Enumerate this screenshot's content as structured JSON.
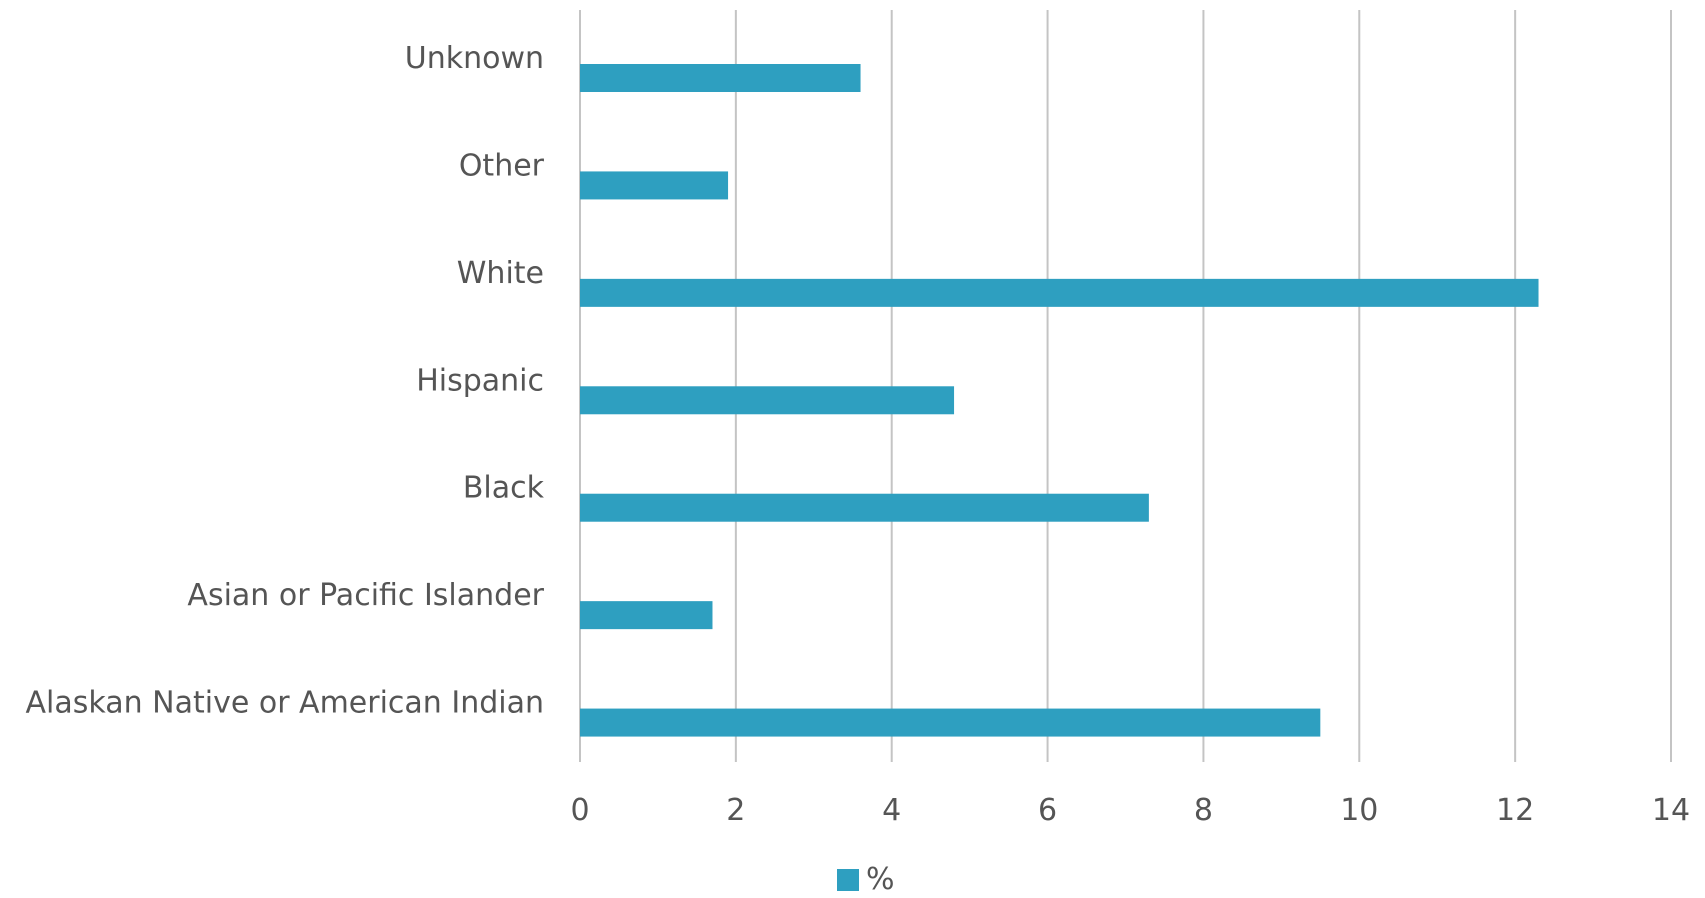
{
  "chart_data": {
    "type": "bar",
    "orientation": "horizontal",
    "categories": [
      "Unknown",
      "Other",
      "White",
      "Hispanic",
      "Black",
      "Asian or Pacific Islander",
      "Alaskan Native or American Indian"
    ],
    "series": [
      {
        "name": "%",
        "values": [
          3.6,
          1.9,
          12.3,
          4.8,
          7.3,
          1.7,
          9.5
        ]
      }
    ],
    "xlim": [
      0,
      14
    ],
    "xticks": [
      "0",
      "2",
      "4",
      "6",
      "8",
      "10",
      "12",
      "14"
    ],
    "grid": true,
    "legend": "bottom",
    "colors": {
      "bar": "#2e9fc0",
      "grid": "#c4c4c4",
      "text": "#555555"
    }
  }
}
